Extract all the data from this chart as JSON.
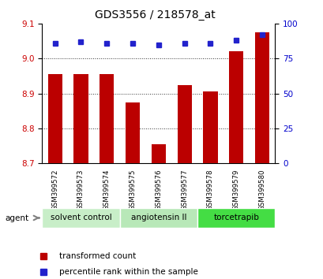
{
  "title": "GDS3556 / 218578_at",
  "samples": [
    "GSM399572",
    "GSM399573",
    "GSM399574",
    "GSM399575",
    "GSM399576",
    "GSM399577",
    "GSM399578",
    "GSM399579",
    "GSM399580"
  ],
  "bar_values": [
    8.955,
    8.955,
    8.955,
    8.875,
    8.755,
    8.925,
    8.905,
    9.02,
    9.075
  ],
  "percentile_values": [
    86,
    87,
    86,
    86,
    85,
    86,
    86,
    88,
    92
  ],
  "bar_color": "#bb0000",
  "dot_color": "#2222cc",
  "ylim_left": [
    8.7,
    9.1
  ],
  "ylim_right": [
    0,
    100
  ],
  "yticks_left": [
    8.7,
    8.8,
    8.9,
    9.0,
    9.1
  ],
  "yticks_right": [
    0,
    25,
    50,
    75,
    100
  ],
  "groups": [
    {
      "label": "solvent control",
      "start": 0,
      "end": 3,
      "color": "#c8eec8"
    },
    {
      "label": "angiotensin II",
      "start": 3,
      "end": 6,
      "color": "#b8e8b8"
    },
    {
      "label": "torcetrapib",
      "start": 6,
      "end": 9,
      "color": "#44dd44"
    }
  ],
  "agent_label": "agent",
  "legend_items": [
    {
      "label": "transformed count",
      "color": "#bb0000"
    },
    {
      "label": "percentile rank within the sample",
      "color": "#2222cc"
    }
  ],
  "bar_width": 0.55,
  "background_color": "#ffffff",
  "plot_bg_color": "#ffffff",
  "tick_label_color_left": "#cc0000",
  "tick_label_color_right": "#0000cc",
  "grid_color": "#333333",
  "sample_box_color": "#cccccc",
  "sample_box_border": "#888888"
}
